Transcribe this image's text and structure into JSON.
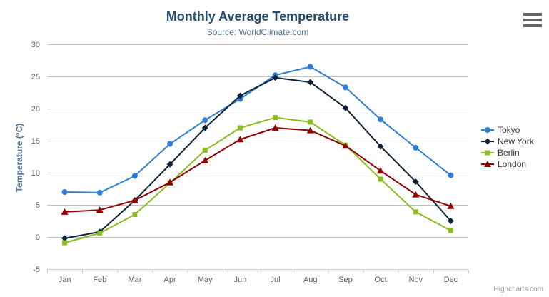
{
  "chart": {
    "credits_label": "Highcharts.com"
  },
  "chart_data": {
    "type": "line",
    "title": "Monthly Average Temperature",
    "subtitle": "Source: WorldClimate.com",
    "xlabel": "",
    "ylabel": "Temperature (°C)",
    "ylim": [
      -5,
      30
    ],
    "yticks": [
      30,
      25,
      20,
      15,
      10,
      5,
      0,
      -5
    ],
    "grid": true,
    "legend_position": "right",
    "categories": [
      "Jan",
      "Feb",
      "Mar",
      "Apr",
      "May",
      "Jun",
      "Jul",
      "Aug",
      "Sep",
      "Oct",
      "Nov",
      "Dec"
    ],
    "series": [
      {
        "name": "Tokyo",
        "color": "#2f7ed8",
        "marker": "circle",
        "values": [
          7.0,
          6.9,
          9.5,
          14.5,
          18.2,
          21.5,
          25.2,
          26.5,
          23.3,
          18.3,
          13.9,
          9.6
        ]
      },
      {
        "name": "New York",
        "color": "#0d233a",
        "marker": "diamond",
        "values": [
          -0.2,
          0.8,
          5.7,
          11.3,
          17.0,
          22.0,
          24.8,
          24.1,
          20.1,
          14.1,
          8.6,
          2.5
        ]
      },
      {
        "name": "Berlin",
        "color": "#8bbc21",
        "marker": "square",
        "values": [
          -0.9,
          0.6,
          3.5,
          8.4,
          13.5,
          17.0,
          18.6,
          17.9,
          14.3,
          9.0,
          3.9,
          1.0
        ]
      },
      {
        "name": "London",
        "color": "#910000",
        "marker": "triangle",
        "values": [
          3.9,
          4.2,
          5.7,
          8.5,
          11.9,
          15.2,
          17.0,
          16.6,
          14.2,
          10.3,
          6.6,
          4.8
        ]
      }
    ],
    "colors": {
      "title": "#274b6d",
      "subtitle": "#4d759e",
      "y_axis_title": "#4d759e",
      "axis_label": "#606060",
      "grid_line": "#c0c0c0",
      "axis_line": "#c0d0e0",
      "legend_text": "#333333",
      "credits": "#909090"
    }
  }
}
